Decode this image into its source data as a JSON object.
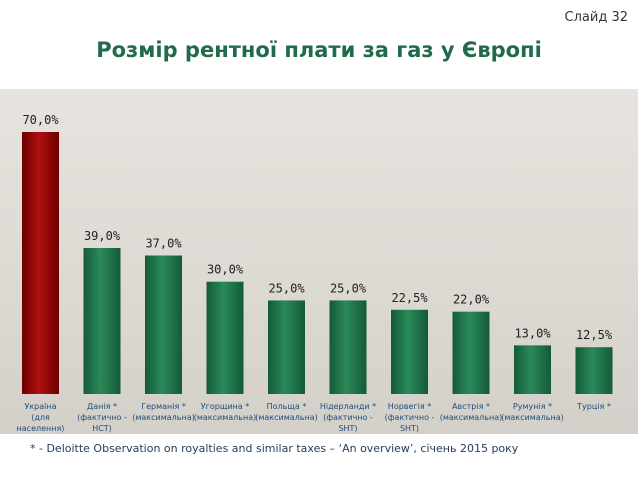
{
  "header": {
    "slide_label": "Слайд 32",
    "title": "Розмір рентної плати за газ у Європі"
  },
  "footnote": "* - Deloitte Observation on royalties and similar taxes – ‘An overview’, січень 2015 року",
  "colors": {
    "highlight": "#8b0000",
    "bar": "#1e6b45",
    "label": "#1f4e79"
  },
  "chart_data": {
    "type": "bar",
    "title": "Розмір рентної плати за газ у Європі",
    "xlabel": "",
    "ylabel": "",
    "ylim": [
      0,
      70
    ],
    "grid": false,
    "categories": [
      [
        "Україна",
        "(для",
        "населення)"
      ],
      [
        "Данія *",
        "(фактично -",
        "НСТ)"
      ],
      [
        "Германія *",
        "(максимальна)"
      ],
      [
        "Угорщина *",
        "(максимальна)"
      ],
      [
        "Польща *",
        "(максимальна)"
      ],
      [
        "Нідерланди *",
        "(фактично -",
        "SHT)"
      ],
      [
        "Норвегія *",
        "(фактично -",
        "SHT)"
      ],
      [
        "Австрія *",
        "(максимальна)"
      ],
      [
        "Румунія *",
        "(максимальна)"
      ],
      [
        "Турція *"
      ]
    ],
    "values": [
      70.0,
      39.0,
      37.0,
      30.0,
      25.0,
      25.0,
      22.5,
      22.0,
      13.0,
      12.5
    ],
    "value_labels": [
      "70,0%",
      "39,0%",
      "37,0%",
      "30,0%",
      "25,0%",
      "25,0%",
      "22,5%",
      "22,0%",
      "13,0%",
      "12,5%"
    ],
    "highlight_index": 0
  }
}
